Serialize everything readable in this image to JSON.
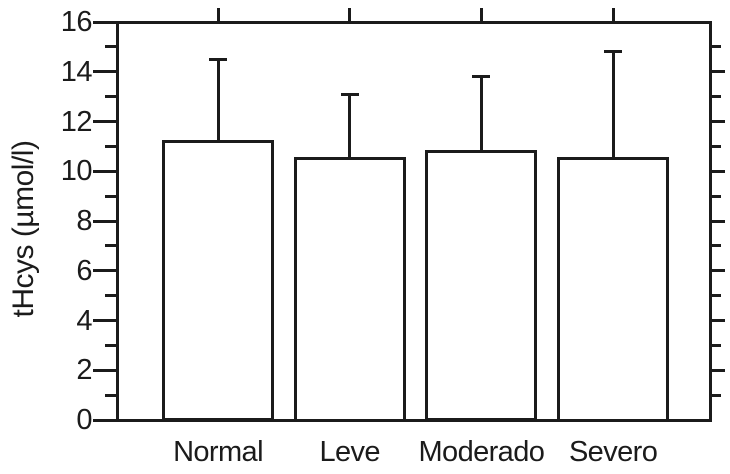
{
  "chart_data": {
    "type": "bar",
    "title": "",
    "xlabel": "",
    "ylabel": "tHcys (µmol/l)",
    "categories": [
      "Normal",
      "Leve",
      "Moderado",
      "Severo"
    ],
    "values": [
      11.2,
      10.5,
      10.8,
      10.5
    ],
    "error_plus": [
      3.3,
      2.6,
      3.0,
      4.3
    ],
    "error_tops": [
      14.5,
      13.1,
      13.8,
      14.8
    ],
    "ylim": [
      0,
      16
    ],
    "yticks_major": [
      0,
      2,
      4,
      6,
      8,
      10,
      12,
      14,
      16
    ],
    "yticks_minor": [
      1,
      3,
      5,
      7,
      9,
      11,
      13,
      15
    ],
    "grid": false,
    "legend": null,
    "frame": "box",
    "tick_direction": "out",
    "bar_fill": "#ffffff",
    "line_color": "#1b1b1b",
    "background": "#ffffff"
  }
}
